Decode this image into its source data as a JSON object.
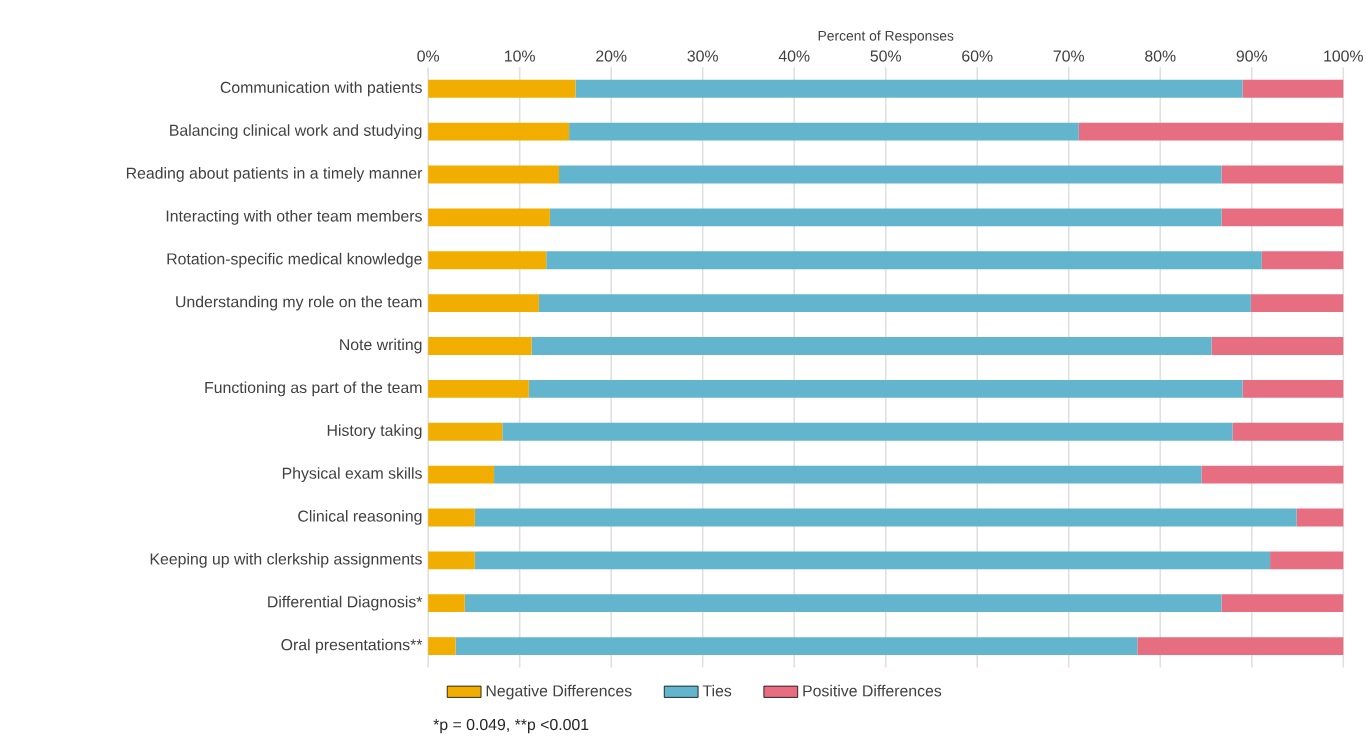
{
  "chart_data": {
    "type": "bar",
    "orientation": "horizontal",
    "stacked": true,
    "xlabel": "Percent of Responses",
    "categories": [
      "Communication with patients",
      "Balancing clinical work and studying",
      "Reading about patients in a timely manner",
      "Interacting with other team members",
      "Rotation-specific medical knowledge",
      "Understanding my role on the team",
      "Note writing",
      "Functioning as part of the team",
      "History taking",
      "Physical exam skills",
      "Clinical reasoning",
      "Keeping up with clerkship assignments",
      "Differential Diagnosis*",
      "Oral presentations**"
    ],
    "series": [
      {
        "name": "Negative Differences",
        "color": "#f2ae00",
        "values": [
          16.1,
          15.4,
          14.3,
          13.3,
          12.9,
          12.1,
          11.3,
          11.0,
          8.1,
          7.2,
          5.1,
          5.1,
          4.0,
          3.0
        ]
      },
      {
        "name": "Ties",
        "color": "#62b5cc",
        "values": [
          72.9,
          55.7,
          72.4,
          73.4,
          78.2,
          77.8,
          74.3,
          78.0,
          79.8,
          77.3,
          89.8,
          86.9,
          82.7,
          74.5
        ]
      },
      {
        "name": "Positive Differences",
        "color": "#e76e80",
        "values": [
          11.0,
          28.9,
          13.3,
          13.3,
          8.9,
          10.1,
          14.4,
          11.0,
          12.1,
          15.5,
          5.1,
          8.0,
          13.3,
          22.5
        ]
      }
    ],
    "xlim": [
      0,
      100
    ],
    "xticks": [
      {
        "value": 0,
        "label": "0%"
      },
      {
        "value": 10,
        "label": "10%"
      },
      {
        "value": 20,
        "label": "20%"
      },
      {
        "value": 30,
        "label": "30%"
      },
      {
        "value": 40,
        "label": "40%"
      },
      {
        "value": 50,
        "label": "50%"
      },
      {
        "value": 60,
        "label": "60%"
      },
      {
        "value": 70,
        "label": "70%"
      },
      {
        "value": 80,
        "label": "80%"
      },
      {
        "value": 90,
        "label": "90%"
      },
      {
        "value": 100,
        "label": "100%"
      }
    ],
    "grid": "x",
    "legend": "bottom",
    "annotations": [
      "*p = 0.049, **p <0.001"
    ]
  }
}
